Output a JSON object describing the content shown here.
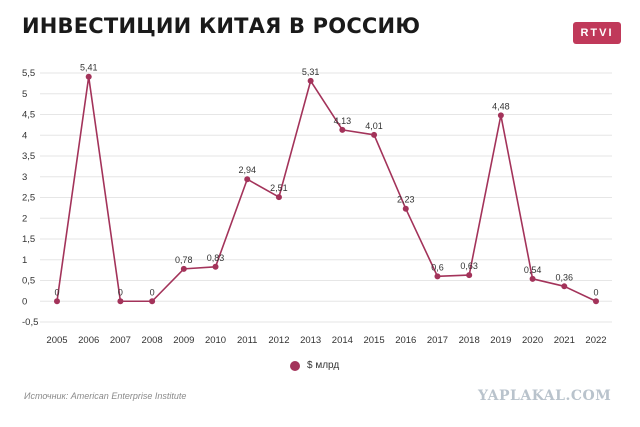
{
  "header": {
    "title": "ИНВЕСТИЦИИ КИТАЯ В РОССИЮ",
    "brand": "RTVI"
  },
  "source": "Источник: American Enterprise Institute",
  "watermark": "YAPLAKAL.COM",
  "colors": {
    "line": "#a3335a",
    "brand": "#c0395a",
    "grid": "#e6e6e6"
  },
  "chart_data": {
    "type": "line",
    "x": [
      "2005",
      "2006",
      "2007",
      "2008",
      "2009",
      "2010",
      "2011",
      "2012",
      "2013",
      "2014",
      "2015",
      "2016",
      "2017",
      "2018",
      "2019",
      "2020",
      "2021",
      "2022"
    ],
    "series": [
      {
        "name": "$ млрд",
        "values": [
          0,
          5.41,
          0,
          0,
          0.78,
          0.83,
          2.94,
          2.51,
          5.31,
          4.13,
          4.01,
          2.23,
          0.6,
          0.63,
          4.48,
          0.54,
          0.36,
          0
        ],
        "labels": [
          "0",
          "5,41",
          "0",
          "0",
          "0,78",
          "0,83",
          "2,94",
          "2,51",
          "5,31",
          "4,13",
          "4,01",
          "2,23",
          "0,6",
          "0,63",
          "4,48",
          "0,54",
          "0,36",
          "0"
        ]
      }
    ],
    "yticks": [
      -0.5,
      0,
      0.5,
      1,
      1.5,
      2,
      2.5,
      3,
      3.5,
      4,
      4.5,
      5,
      5.5
    ],
    "ytick_labels": [
      "-0,5",
      "0",
      "0,5",
      "1",
      "1,5",
      "2",
      "2,5",
      "3",
      "3,5",
      "4",
      "4,5",
      "5",
      "5,5"
    ],
    "ylim": [
      -0.5,
      5.5
    ],
    "grid": true,
    "legend": "bottom-center",
    "xlabel": "",
    "ylabel": ""
  }
}
